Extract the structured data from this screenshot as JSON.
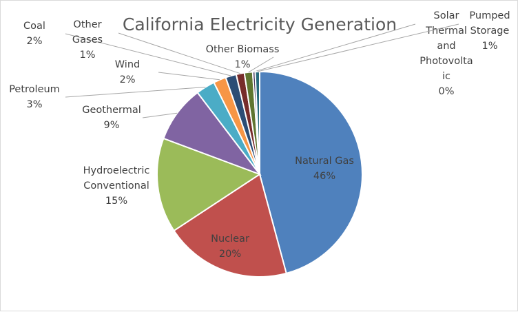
{
  "chart_data": {
    "type": "pie",
    "title": "California Electricity Generation",
    "colors": {
      "Natural Gas": "#4f81bd",
      "Nuclear": "#c0504d",
      "Hydroelectric Conventional": "#9bbb59",
      "Geothermal": "#8064a2",
      "Petroleum": "#4bacc6",
      "Wind": "#f79646",
      "Coal": "#2c4d75",
      "Other Gases": "#772c2a",
      "Other Biomass": "#5f7530",
      "Solar Thermal and Photovoltaic": "#4d3b62",
      "Pumped Storage": "#276a7c"
    },
    "slices": [
      {
        "label": "Natural Gas",
        "label_lines": [
          "Natural Gas"
        ],
        "percent_text": "46%",
        "value": 46
      },
      {
        "label": "Nuclear",
        "label_lines": [
          "Nuclear"
        ],
        "percent_text": "20%",
        "value": 20
      },
      {
        "label": "Hydroelectric Conventional",
        "label_lines": [
          "Hydroelectric",
          "Conventional"
        ],
        "percent_text": "15%",
        "value": 15
      },
      {
        "label": "Geothermal",
        "label_lines": [
          "Geothermal"
        ],
        "percent_text": "9%",
        "value": 9
      },
      {
        "label": "Petroleum",
        "label_lines": [
          "Petroleum"
        ],
        "percent_text": "3%",
        "value": 3
      },
      {
        "label": "Wind",
        "label_lines": [
          "Wind"
        ],
        "percent_text": "2%",
        "value": 2
      },
      {
        "label": "Coal",
        "label_lines": [
          "Coal"
        ],
        "percent_text": "2%",
        "value": 1.7
      },
      {
        "label": "Other Gases",
        "label_lines": [
          "Other",
          "Gases"
        ],
        "percent_text": "1%",
        "value": 1.3
      },
      {
        "label": "Other Biomass",
        "label_lines": [
          "Other Biomass"
        ],
        "percent_text": "1%",
        "value": 1.3
      },
      {
        "label": "Solar Thermal and Photovoltaic",
        "label_lines": [
          "Solar",
          "Thermal",
          "and",
          "Photovolta",
          "ic"
        ],
        "percent_text": "0%",
        "value": 0.4
      },
      {
        "label": "Pumped Storage",
        "label_lines": [
          "Pumped",
          "Storage"
        ],
        "percent_text": "1%",
        "value": 0.7
      }
    ]
  }
}
